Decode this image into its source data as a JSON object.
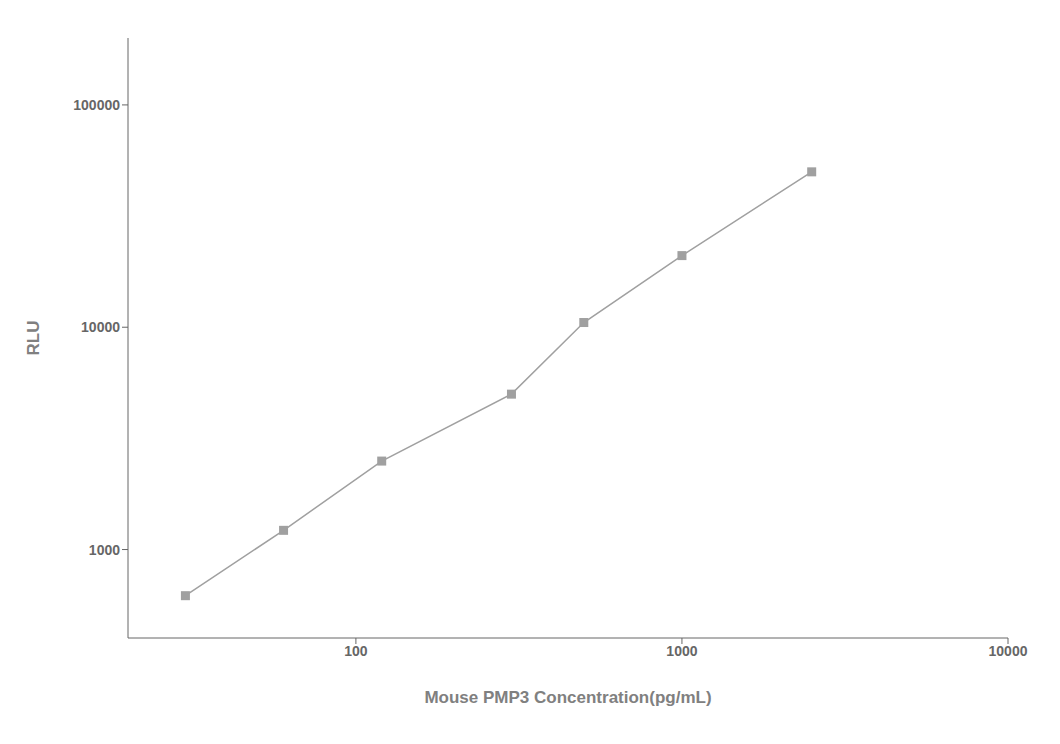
{
  "chart_data": {
    "type": "line",
    "x": [
      30,
      60,
      120,
      300,
      500,
      1000,
      2500
    ],
    "values": [
      620,
      1220,
      2500,
      5000,
      10500,
      21000,
      50000
    ],
    "xlabel": "Mouse PMP3 Concentration(pg/mL)",
    "ylabel": "RLU",
    "xlim": [
      20,
      10000
    ],
    "ylim": [
      400,
      200000
    ],
    "xticks": [
      100,
      1000,
      10000
    ],
    "yticks": [
      1000,
      10000,
      100000
    ],
    "log": true,
    "grid": false,
    "color": "#a0a0a0",
    "marker": "square"
  }
}
